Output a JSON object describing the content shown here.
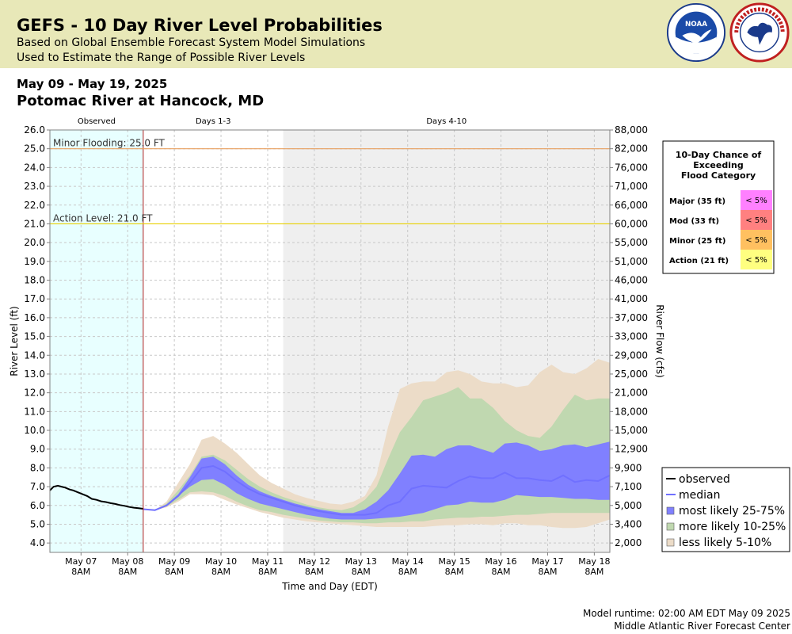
{
  "header": {
    "title": "GEFS - 10 Day River Level Probabilities",
    "subtitle1": "Based on Global Ensemble Forecast System Model Simulations",
    "subtitle2": "Used to Estimate the Range of Possible River Levels",
    "noaa_logo": "NOAA",
    "nws_logo": "NATIONAL WEATHER SERVICE"
  },
  "date_range": "May 09 - May 19, 2025",
  "location": "Potomac River at Hancock, MD",
  "footer": {
    "runtime": "Model runtime: 02:00 AM EDT May 09 2025",
    "center": "Middle Atlantic River Forecast Center"
  },
  "chart_data": {
    "type": "area",
    "xlabel": "Time and Day (EDT)",
    "ylabel": "River Level (ft)",
    "ylabel_right": "River Flow (cfs)",
    "ylim": [
      3.5,
      26.0
    ],
    "grid": true,
    "period_labels": [
      "Observed",
      "Days 1-3",
      "Days 4-10"
    ],
    "period_bounds_days": [
      0,
      2,
      5,
      12
    ],
    "x_day_start": "May 06 16:00",
    "x_tick_days": [
      0.667,
      1.667,
      2.667,
      3.667,
      4.667,
      5.667,
      6.667,
      7.667,
      8.667,
      9.667,
      10.667,
      11.667
    ],
    "x_tick_labels": [
      [
        "May 07",
        "8AM"
      ],
      [
        "May 08",
        "8AM"
      ],
      [
        "May 09",
        "8AM"
      ],
      [
        "May 10",
        "8AM"
      ],
      [
        "May 11",
        "8AM"
      ],
      [
        "May 12",
        "8AM"
      ],
      [
        "May 13",
        "8AM"
      ],
      [
        "May 14",
        "8AM"
      ],
      [
        "May 15",
        "8AM"
      ],
      [
        "May 16",
        "8AM"
      ],
      [
        "May 17",
        "8AM"
      ],
      [
        "May 18",
        "8AM"
      ]
    ],
    "y_ticks": [
      4.0,
      5.0,
      6.0,
      7.0,
      8.0,
      9.0,
      10.0,
      11.0,
      12.0,
      13.0,
      14.0,
      15.0,
      16.0,
      17.0,
      18.0,
      19.0,
      20.0,
      21.0,
      22.0,
      23.0,
      24.0,
      25.0,
      26.0
    ],
    "y_tick_labels": [
      "4.0",
      "5.0",
      "6.0",
      "7.0",
      "8.0",
      "9.0",
      "10.0",
      "11.0",
      "12.0",
      "13.0",
      "14.0",
      "15.0",
      "16.0",
      "17.0",
      "18.0",
      "19.0",
      "20.0",
      "21.0",
      "22.0",
      "23.0",
      "24.0",
      "25.0",
      "26.0"
    ],
    "y2_tick_labels": [
      "2,000",
      "3,400",
      "5,000",
      "7,100",
      "9,900",
      "12,900",
      "15,000",
      "18,000",
      "21,000",
      "25,000",
      "29,000",
      "33,000",
      "37,000",
      "41,000",
      "46,000",
      "51,000",
      "55,000",
      "60,000",
      "66,000",
      "71,000",
      "76,000",
      "82,000",
      "88,000"
    ],
    "thresholds": [
      {
        "label": "Minor Flooding: 25.0 FT",
        "value": 25.0,
        "color": "#e8a060"
      },
      {
        "label": "Action Level: 21.0 FT",
        "value": 21.0,
        "color": "#e8d000"
      }
    ],
    "observed": {
      "name": "observed",
      "x": [
        0,
        0.08,
        0.17,
        0.25,
        0.33,
        0.42,
        0.5,
        0.6,
        0.7,
        0.8,
        0.9,
        1.0,
        1.1,
        1.2,
        1.3,
        1.4,
        1.5,
        1.6,
        1.7,
        1.8,
        1.9,
        2.0
      ],
      "y": [
        6.8,
        7.0,
        7.05,
        7.0,
        6.95,
        6.85,
        6.8,
        6.7,
        6.6,
        6.5,
        6.35,
        6.3,
        6.22,
        6.18,
        6.12,
        6.08,
        6.02,
        5.98,
        5.92,
        5.88,
        5.85,
        5.82
      ]
    },
    "forecast_x": [
      2.0,
      2.25,
      2.5,
      2.75,
      3.0,
      3.25,
      3.5,
      3.75,
      4.0,
      4.25,
      4.5,
      4.75,
      5.0,
      5.25,
      5.5,
      5.75,
      6.0,
      6.25,
      6.5,
      6.75,
      7.0,
      7.25,
      7.5,
      7.75,
      8.0,
      8.25,
      8.5,
      8.75,
      9.0,
      9.25,
      9.5,
      9.75,
      10.0,
      10.25,
      10.5,
      10.75,
      11.0,
      11.25,
      11.5,
      11.75,
      12.0
    ],
    "series": [
      {
        "name": "median",
        "values": [
          5.8,
          5.75,
          6.0,
          6.5,
          7.2,
          8.0,
          8.1,
          7.8,
          7.3,
          6.9,
          6.6,
          6.4,
          6.2,
          6.0,
          5.85,
          5.7,
          5.6,
          5.5,
          5.5,
          5.5,
          5.6,
          6.0,
          6.2,
          6.9,
          7.05,
          7.0,
          6.95,
          7.3,
          7.55,
          7.45,
          7.45,
          7.75,
          7.45,
          7.45,
          7.35,
          7.3,
          7.6,
          7.25,
          7.35,
          7.3,
          7.6
        ]
      },
      {
        "name": "most likely 25-75%",
        "lower": [
          5.8,
          5.75,
          6.0,
          6.5,
          7.0,
          7.35,
          7.4,
          7.1,
          6.65,
          6.35,
          6.1,
          5.95,
          5.8,
          5.65,
          5.5,
          5.4,
          5.3,
          5.25,
          5.25,
          5.25,
          5.3,
          5.35,
          5.4,
          5.5,
          5.6,
          5.8,
          6.0,
          6.05,
          6.2,
          6.15,
          6.15,
          6.3,
          6.55,
          6.5,
          6.45,
          6.45,
          6.4,
          6.35,
          6.35,
          6.3,
          6.3
        ],
        "upper": [
          5.8,
          5.75,
          6.05,
          6.6,
          7.5,
          8.5,
          8.6,
          8.2,
          7.6,
          7.1,
          6.75,
          6.5,
          6.3,
          6.1,
          5.95,
          5.8,
          5.7,
          5.6,
          5.6,
          5.8,
          6.2,
          6.8,
          7.7,
          8.65,
          8.7,
          8.6,
          9.0,
          9.2,
          9.2,
          9.0,
          8.8,
          9.3,
          9.35,
          9.2,
          8.9,
          9.0,
          9.2,
          9.25,
          9.1,
          9.25,
          9.4
        ]
      },
      {
        "name": "more likely 10-25%",
        "lower": [
          5.8,
          5.75,
          5.95,
          6.3,
          6.7,
          6.75,
          6.7,
          6.5,
          6.2,
          5.95,
          5.75,
          5.65,
          5.5,
          5.4,
          5.3,
          5.2,
          5.15,
          5.1,
          5.1,
          5.05,
          5.05,
          5.1,
          5.1,
          5.15,
          5.15,
          5.25,
          5.3,
          5.35,
          5.35,
          5.4,
          5.4,
          5.45,
          5.5,
          5.5,
          5.55,
          5.6,
          5.6,
          5.6,
          5.6,
          5.6,
          5.6
        ],
        "upper": [
          5.8,
          5.75,
          6.1,
          6.8,
          7.6,
          8.6,
          8.7,
          8.4,
          7.9,
          7.4,
          7.0,
          6.7,
          6.45,
          6.25,
          6.05,
          5.9,
          5.8,
          5.75,
          5.9,
          6.3,
          7.0,
          8.5,
          9.9,
          10.7,
          11.6,
          11.8,
          12.0,
          12.3,
          11.7,
          11.7,
          11.2,
          10.5,
          10.0,
          9.7,
          9.6,
          10.2,
          11.1,
          11.9,
          11.6,
          11.7,
          11.7
        ]
      },
      {
        "name": "less likely 5-10%",
        "lower": [
          5.8,
          5.75,
          5.9,
          6.2,
          6.6,
          6.6,
          6.55,
          6.3,
          6.05,
          5.85,
          5.65,
          5.5,
          5.35,
          5.25,
          5.15,
          5.1,
          5.05,
          5.0,
          4.95,
          4.9,
          4.85,
          4.85,
          4.85,
          4.85,
          4.85,
          4.9,
          4.95,
          4.95,
          5.0,
          5.0,
          4.95,
          5.05,
          5.05,
          4.95,
          4.95,
          4.85,
          4.8,
          4.8,
          4.85,
          5.05,
          5.25
        ],
        "upper": [
          5.8,
          5.75,
          6.2,
          7.2,
          8.2,
          9.5,
          9.7,
          9.3,
          8.8,
          8.2,
          7.6,
          7.2,
          6.9,
          6.6,
          6.4,
          6.25,
          6.1,
          6.05,
          6.2,
          6.5,
          7.6,
          10.2,
          12.2,
          12.5,
          12.6,
          12.6,
          13.1,
          13.2,
          13.0,
          12.6,
          12.5,
          12.5,
          12.3,
          12.4,
          13.1,
          13.5,
          13.1,
          13.0,
          13.3,
          13.8,
          13.6
        ]
      }
    ],
    "legend": [
      {
        "label": "observed",
        "type": "line",
        "color": "#000000"
      },
      {
        "label": "median",
        "type": "line",
        "color": "#7070ff"
      },
      {
        "label": "most likely 25-75%",
        "type": "box",
        "color": "#8080ff"
      },
      {
        "label": "more likely 10-25%",
        "type": "box",
        "color": "#c0d8b0"
      },
      {
        "label": "less likely 5-10%",
        "type": "box",
        "color": "#ecdcc8"
      }
    ],
    "legend_placement": "bottom-right",
    "flood_table": {
      "title": [
        "10-Day Chance of",
        "Exceeding",
        "Flood Category"
      ],
      "rows": [
        {
          "label": "Major (35 ft)",
          "value": "< 5%",
          "color": "#ff80ff"
        },
        {
          "label": "Mod (33 ft)",
          "value": "< 5%",
          "color": "#ff8080"
        },
        {
          "label": "Minor (25 ft)",
          "value": "< 5%",
          "color": "#ffc060"
        },
        {
          "label": "Action (21 ft)",
          "value": "< 5%",
          "color": "#ffff80"
        }
      ]
    },
    "colors": {
      "observed_bg": "#e8ffff",
      "days410_bg": "#efefef",
      "now_line": "#b02020",
      "band_25_75": "#8080ff",
      "band_10_25": "#c0d8b0",
      "band_5_10": "#ecdcc8",
      "median": "#7070ff"
    }
  }
}
